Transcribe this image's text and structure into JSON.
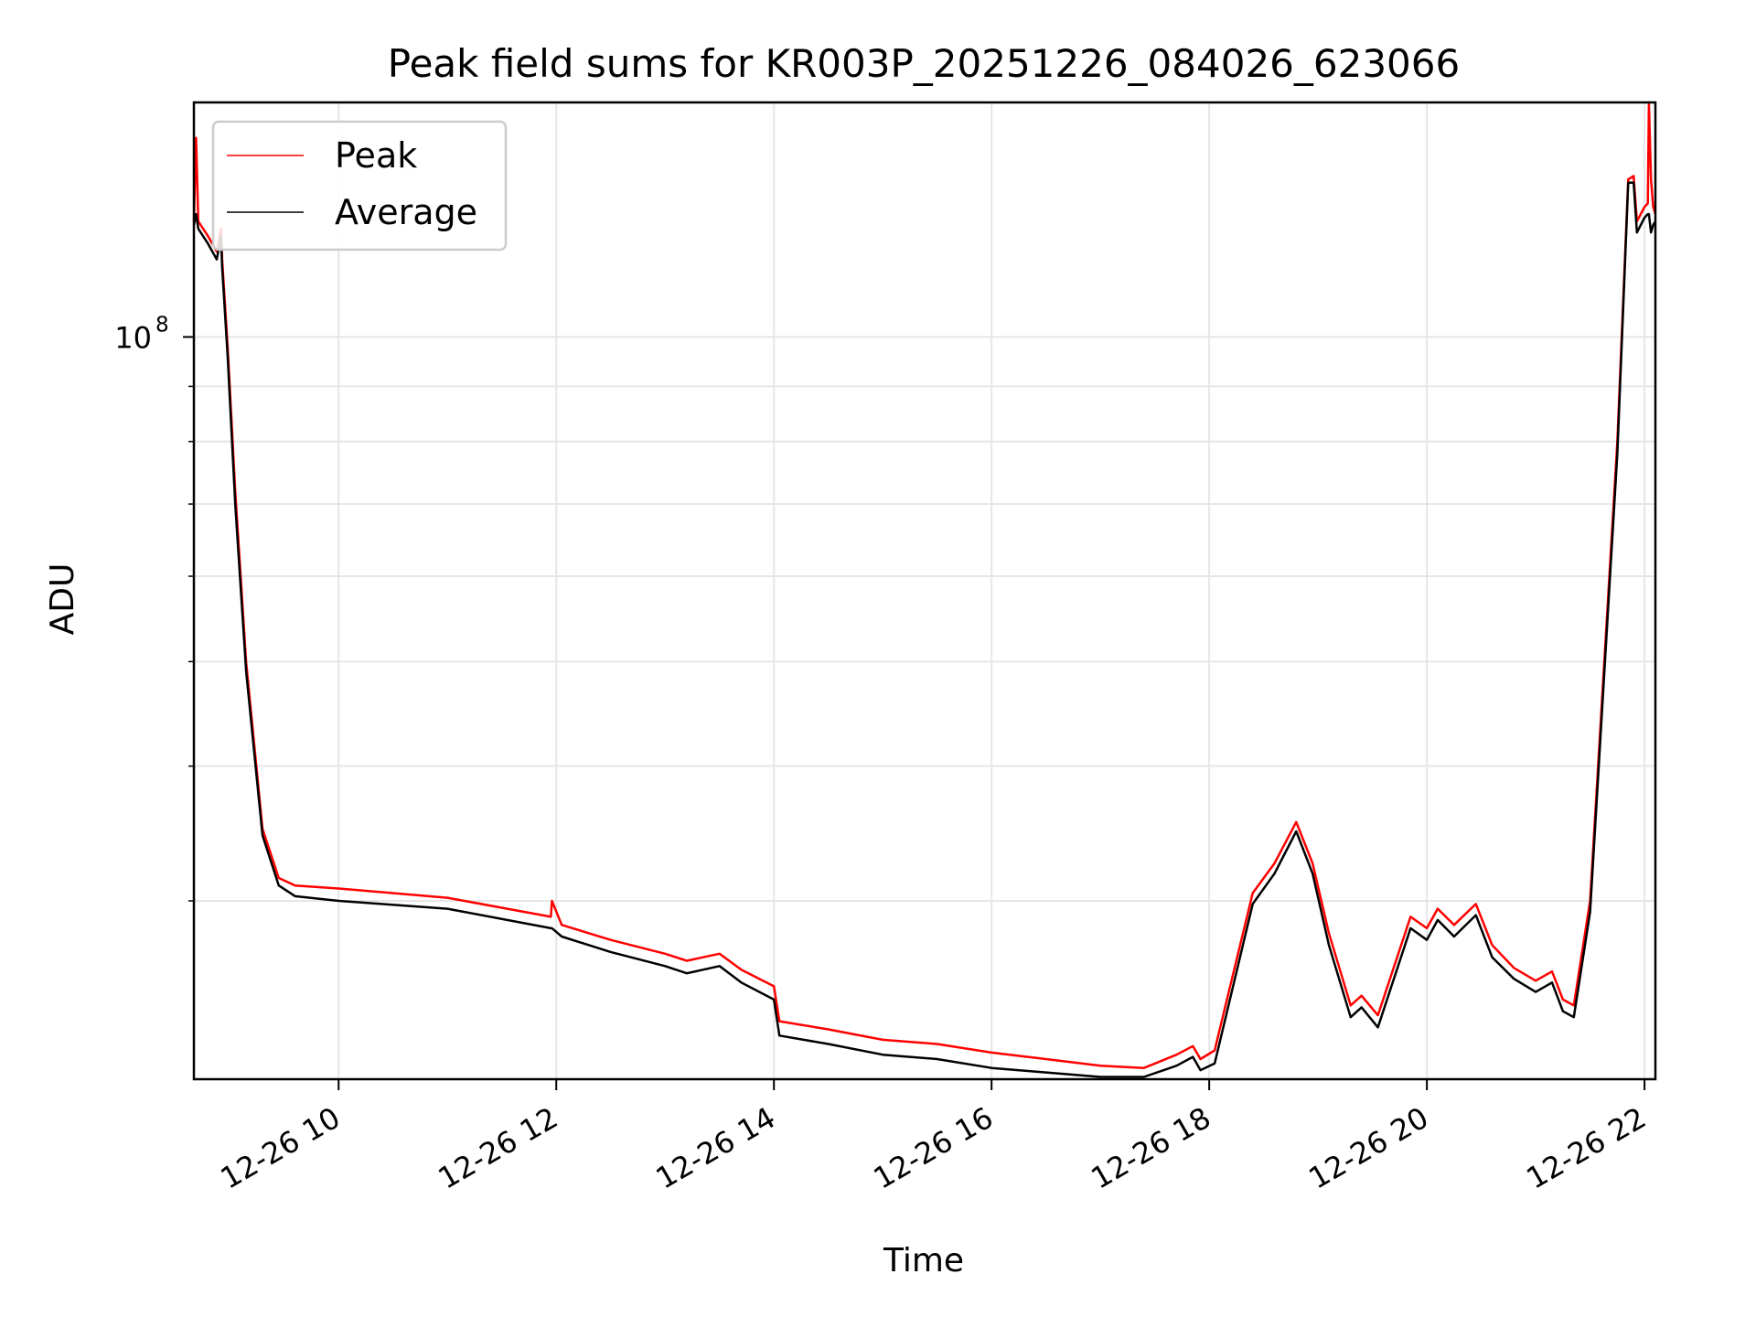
{
  "chart_data": {
    "type": "line",
    "title": "Peak field sums for KR003P_20251226_084026_623066",
    "xlabel": "Time",
    "ylabel": "ADU",
    "yscale": "log",
    "ylim": [
      20500000,
      165000000
    ],
    "y_major_tick": {
      "value": 100000000,
      "base": "10",
      "exponent": "8"
    },
    "y_minor_ticks": [
      30000000,
      40000000,
      50000000,
      60000000,
      70000000,
      80000000,
      90000000
    ],
    "xlim": [
      8.67,
      22.1
    ],
    "x_ticks": [
      10,
      12,
      14,
      16,
      18,
      20,
      22
    ],
    "x_tick_labels": [
      "12-26 10",
      "12-26 12",
      "12-26 14",
      "12-26 16",
      "12-26 18",
      "12-26 20",
      "12-26 22"
    ],
    "grid": true,
    "legend_position": "top-left",
    "series": [
      {
        "name": "Peak",
        "color": "#ff0000",
        "x": [
          8.67,
          8.69,
          8.71,
          8.8,
          8.88,
          8.92,
          8.93,
          8.98,
          9.05,
          9.15,
          9.3,
          9.45,
          9.6,
          10.0,
          11.0,
          11.95,
          11.96,
          12.05,
          12.5,
          13.0,
          13.2,
          13.5,
          13.7,
          14.0,
          14.05,
          14.5,
          15.0,
          15.5,
          16.0,
          16.5,
          17.0,
          17.4,
          17.7,
          17.85,
          17.92,
          18.05,
          18.4,
          18.6,
          18.8,
          18.95,
          19.1,
          19.3,
          19.4,
          19.55,
          19.85,
          20.0,
          20.1,
          20.25,
          20.45,
          20.6,
          20.8,
          21.0,
          21.15,
          21.25,
          21.35,
          21.5,
          21.75,
          21.85,
          21.9,
          21.93,
          22.0,
          22.03,
          22.04,
          22.06,
          22.08,
          22.1
        ],
        "y": [
          128000000,
          153000000,
          128000000,
          124000000,
          120000000,
          126000000,
          118000000,
          98000000,
          72000000,
          50000000,
          35000000,
          31500000,
          31000000,
          30800000,
          30200000,
          29000000,
          30000000,
          28500000,
          27600000,
          26800000,
          26400000,
          26800000,
          25900000,
          25000000,
          23200000,
          22800000,
          22300000,
          22100000,
          21700000,
          21400000,
          21100000,
          21000000,
          21600000,
          22000000,
          21400000,
          21800000,
          30500000,
          32500000,
          35500000,
          32500000,
          28000000,
          24000000,
          24500000,
          23500000,
          29000000,
          28300000,
          29500000,
          28500000,
          29800000,
          27300000,
          26000000,
          25300000,
          25800000,
          24300000,
          24000000,
          30000000,
          80000000,
          140000000,
          141000000,
          128000000,
          132000000,
          133000000,
          165000000,
          140000000,
          132000000,
          130000000
        ]
      },
      {
        "name": "Average",
        "color": "#000000",
        "x": [
          8.67,
          8.69,
          8.71,
          8.8,
          8.88,
          8.92,
          8.93,
          8.98,
          9.05,
          9.15,
          9.3,
          9.45,
          9.6,
          10.0,
          11.0,
          11.95,
          11.96,
          12.05,
          12.5,
          13.0,
          13.2,
          13.5,
          13.7,
          14.0,
          14.05,
          14.5,
          15.0,
          15.5,
          16.0,
          16.5,
          17.0,
          17.4,
          17.7,
          17.85,
          17.92,
          18.05,
          18.4,
          18.6,
          18.8,
          18.95,
          19.1,
          19.3,
          19.4,
          19.55,
          19.85,
          20.0,
          20.1,
          20.25,
          20.45,
          20.6,
          20.8,
          21.0,
          21.15,
          21.25,
          21.35,
          21.5,
          21.75,
          21.85,
          21.9,
          21.93,
          22.0,
          22.03,
          22.04,
          22.06,
          22.08,
          22.1
        ],
        "y": [
          127000000,
          130000000,
          126000000,
          122000000,
          118000000,
          124000000,
          116000000,
          96000000,
          70000000,
          49000000,
          34500000,
          31000000,
          30300000,
          30000000,
          29500000,
          28300000,
          28300000,
          27800000,
          26900000,
          26100000,
          25700000,
          26100000,
          25200000,
          24300000,
          22500000,
          22100000,
          21600000,
          21400000,
          21000000,
          20800000,
          20600000,
          20600000,
          21100000,
          21500000,
          20900000,
          21200000,
          29800000,
          31800000,
          34800000,
          31800000,
          27300000,
          23400000,
          23900000,
          22900000,
          28300000,
          27600000,
          28800000,
          27800000,
          29100000,
          26600000,
          25400000,
          24700000,
          25200000,
          23700000,
          23400000,
          29300000,
          78000000,
          139000000,
          139000000,
          125000000,
          129000000,
          130000000,
          130000000,
          125000000,
          127000000,
          128000000
        ]
      }
    ]
  }
}
